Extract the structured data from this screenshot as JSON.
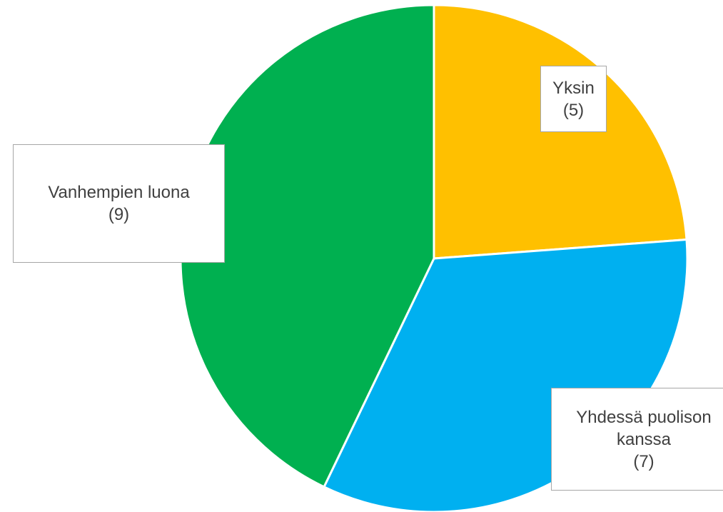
{
  "chart_data": {
    "type": "pie",
    "categories": [
      "Yksin",
      "Yhdessä puolison kanssa",
      "Vanhempien luona"
    ],
    "values": [
      5,
      7,
      9
    ],
    "value_labels": [
      "(5)",
      "(7)",
      "(9)"
    ],
    "colors": [
      "#ffc000",
      "#00b0f0",
      "#00b050"
    ]
  }
}
